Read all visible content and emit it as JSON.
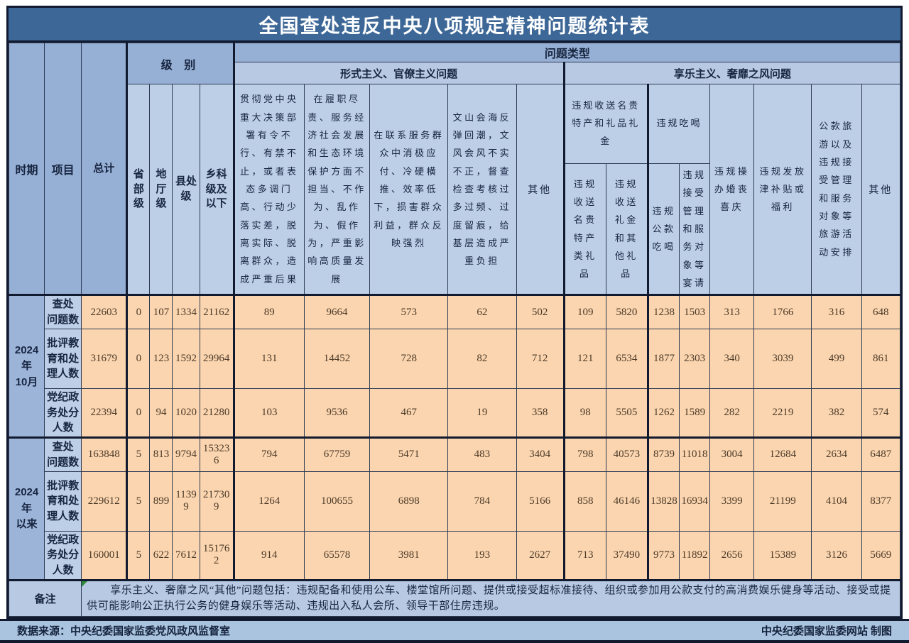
{
  "title": "全国查处违反中央八项规定精神问题统计表",
  "header": {
    "period": "时期",
    "item": "项目",
    "total": "总计",
    "level_group": "级 别",
    "problem_type": "问题类型",
    "levels": [
      "省部级",
      "地厅级",
      "县处级",
      "乡科级及以下"
    ],
    "formalism_group": "形式主义、官僚主义问题",
    "formalism_cols": [
      "贯彻党中央重大决策部署有令不行、有禁不止，或者表态多调门高、行动少落实差，脱离实际、脱离群众，造成严重后果",
      "在履职尽责、服务经济社会发展和生态环境保护方面不担当、不作为、乱作为、假作为，严重影响高质量发展",
      "在联系服务群众中消极应付、冷硬横推、效率低下，损害群众利益，群众反映强烈",
      "文山会海反弹回潮，文风会风不实不正，督查检查考核过多过频、过度留痕，给基层造成严重负担",
      "其他"
    ],
    "hedonism_group": "享乐主义、奢靡之风问题",
    "hedonism_groups": [
      {
        "label": "违规收送名贵特产和礼品礼金",
        "children": [
          "违规收送名贵特产类礼品",
          "违规收送礼金和其他礼品"
        ]
      },
      {
        "label": "违规吃喝",
        "children": [
          "违规公款吃喝",
          "违规接受管理和服务对象等宴请"
        ]
      }
    ],
    "hedonism_singles": [
      "违规操办婚丧喜庆",
      "违规发放津补贴或福利",
      "公款旅游以及违规接受管理和服务对象等旅游活动安排",
      "其他"
    ]
  },
  "body": {
    "periods": [
      {
        "label": "2024年\n10月",
        "row_indexes": [
          0,
          1,
          2
        ]
      },
      {
        "label": "2024年\n以来",
        "row_indexes": [
          3,
          4,
          5
        ]
      }
    ],
    "row_labels": [
      "查处\n问题数",
      "批评教\n育和处\n理人数",
      "党纪政\n务处分\n人数",
      "查处\n问题数",
      "批评教\n育和处\n理人数",
      "党纪政\n务处分\n人数"
    ]
  },
  "chart_data": {
    "type": "table",
    "title": "全国查处违反中央八项规定精神问题统计表",
    "columns": [
      "总计",
      "省部级",
      "地厅级",
      "县处级",
      "乡科级及以下",
      "形式主义、官僚主义问题-贯彻党中央重大决策部署有令不行、有禁不止，或者表态多调门高、行动少落实差，脱离实际、脱离群众，造成严重后果",
      "形式主义、官僚主义问题-在履职尽责、服务经济社会发展和生态环境保护方面不担当、不作为、乱作为、假作为，严重影响高质量发展",
      "形式主义、官僚主义问题-在联系服务群众中消极应付、冷硬横推、效率低下，损害群众利益，群众反映强烈",
      "形式主义、官僚主义问题-文山会海反弹回潮，文风会风不实不正，督查检查考核过多过频、过度留痕，给基层造成严重负担",
      "形式主义、官僚主义问题-其他",
      "享乐主义、奢靡之风问题-违规收送名贵特产类礼品",
      "享乐主义、奢靡之风问题-违规收送礼金和其他礼品",
      "享乐主义、奢靡之风问题-违规公款吃喝",
      "享乐主义、奢靡之风问题-违规接受管理和服务对象等宴请",
      "享乐主义、奢靡之风问题-违规操办婚丧喜庆",
      "享乐主义、奢靡之风问题-违规发放津补贴或福利",
      "享乐主义、奢靡之风问题-公款旅游以及违规接受管理和服务对象等旅游活动安排",
      "享乐主义、奢靡之风问题-其他"
    ],
    "rows": [
      {
        "period": "2024年10月",
        "item": "查处问题数",
        "values": [
          22603,
          0,
          107,
          1334,
          21162,
          89,
          9664,
          573,
          62,
          502,
          109,
          5820,
          1238,
          1503,
          313,
          1766,
          316,
          648
        ]
      },
      {
        "period": "2024年10月",
        "item": "批评教育和处理人数",
        "values": [
          31679,
          0,
          123,
          1592,
          29964,
          131,
          14452,
          728,
          82,
          712,
          121,
          6534,
          1877,
          2303,
          340,
          3039,
          499,
          861
        ]
      },
      {
        "period": "2024年10月",
        "item": "党纪政务处分人数",
        "values": [
          22394,
          0,
          94,
          1020,
          21280,
          103,
          9536,
          467,
          19,
          358,
          98,
          5505,
          1262,
          1589,
          282,
          2219,
          382,
          574
        ]
      },
      {
        "period": "2024年以来",
        "item": "查处问题数",
        "values": [
          163848,
          5,
          813,
          9794,
          153236,
          794,
          67759,
          5471,
          483,
          3404,
          798,
          40573,
          8739,
          11018,
          3004,
          12684,
          2634,
          6487
        ]
      },
      {
        "period": "2024年以来",
        "item": "批评教育和处理人数",
        "values": [
          229612,
          5,
          899,
          11399,
          217309,
          1264,
          100655,
          6898,
          784,
          5166,
          858,
          46146,
          13828,
          16934,
          3399,
          21199,
          4104,
          8377
        ]
      },
      {
        "period": "2024年以来",
        "item": "党纪政务处分人数",
        "values": [
          160001,
          5,
          622,
          7612,
          151762,
          914,
          65578,
          3981,
          193,
          2627,
          713,
          37490,
          9773,
          11892,
          2656,
          15389,
          3126,
          5669
        ]
      }
    ]
  },
  "note": {
    "label": "备注",
    "text": "享乐主义、奢靡之风“其他”问题包括：违规配备和使用公车、楼堂馆所问题、提供或接受超标准接待、组织或参加用公款支付的高消费娱乐健身等活动、接受或提供可能影响公正执行公务的健身娱乐等活动、违规出入私人会所、领导干部住房违规。"
  },
  "footer": {
    "source": "数据来源：中央纪委国家监委党风政风监督室",
    "credit": "中央纪委国家监委网站 制图"
  },
  "colors": {
    "title_bar": "#3d6797",
    "header_medium": "#96afd4",
    "header_light": "#bdcee7",
    "header_mid_light": "#b7c9e3",
    "data_cell": "#fbd5af",
    "footer_bar": "#aac4e0",
    "border_dark": "#111a2e",
    "number_text": "#4b3a28",
    "label_text": "#172540"
  }
}
